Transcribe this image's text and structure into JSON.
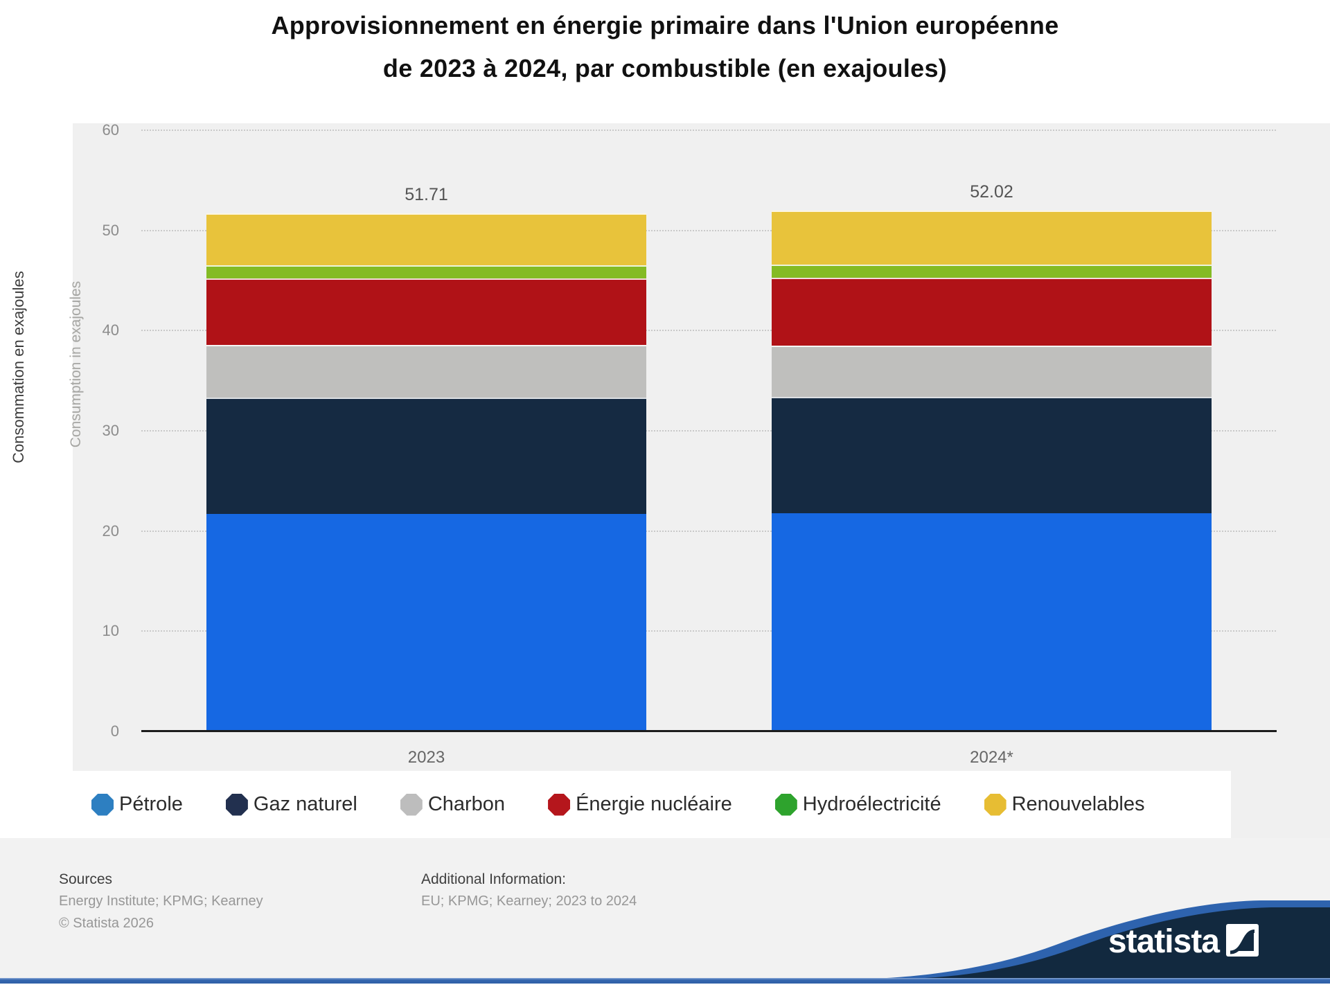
{
  "title": {
    "line1": "Approvisionnement en énergie primaire dans l'Union européenne",
    "line2": "de 2023 à 2024, par combustible (en exajoules)"
  },
  "y_axis": {
    "label": "Consommation en exajoules",
    "ghost_label": "Consumption in exajoules",
    "ticks": [
      "0",
      "10",
      "20",
      "30",
      "40",
      "50",
      "60"
    ]
  },
  "chart_data": {
    "type": "bar",
    "stacked": true,
    "unit": "exajoules",
    "categories": [
      "2023",
      "2024*"
    ],
    "series": [
      {
        "name": "Pétrole",
        "color": "#1668e3",
        "legend_color": "#2d7fc1",
        "values": [
          21.7,
          21.8
        ]
      },
      {
        "name": "Gaz naturel",
        "color": "#152a42",
        "legend_color": "#22304f",
        "values": [
          11.6,
          11.6
        ]
      },
      {
        "name": "Charbon",
        "color": "#bfbfbd",
        "legend_color": "#bdbdbd",
        "values": [
          5.3,
          5.1
        ]
      },
      {
        "name": "Énergie nucléaire",
        "color": "#b01217",
        "legend_color": "#b5161c",
        "values": [
          6.6,
          6.8
        ]
      },
      {
        "name": "Hydroélectricité",
        "color": "#84bb24",
        "legend_color": "#2ea32d",
        "values": [
          1.3,
          1.3
        ]
      },
      {
        "name": "Renouvelables",
        "color": "#e8c33b",
        "legend_color": "#e7bd33",
        "values": [
          5.2,
          5.4
        ]
      }
    ],
    "totals_display": [
      "51.71",
      "52.02"
    ],
    "ylim": [
      0,
      60
    ],
    "grid": "horizontal-dotted",
    "legend_position": "bottom"
  },
  "footer": {
    "sources_heading": "Sources",
    "sources_text": "Energy Institute; KPMG; Kearney",
    "copyright": "© Statista 2026",
    "additional_heading": "Additional Information:",
    "additional_text": "EU; KPMG; Kearney; 2023 to 2024"
  },
  "logo": {
    "wordmark": "statista",
    "wave_dark": "#12293f",
    "wave_blue": "#2e63ae"
  }
}
